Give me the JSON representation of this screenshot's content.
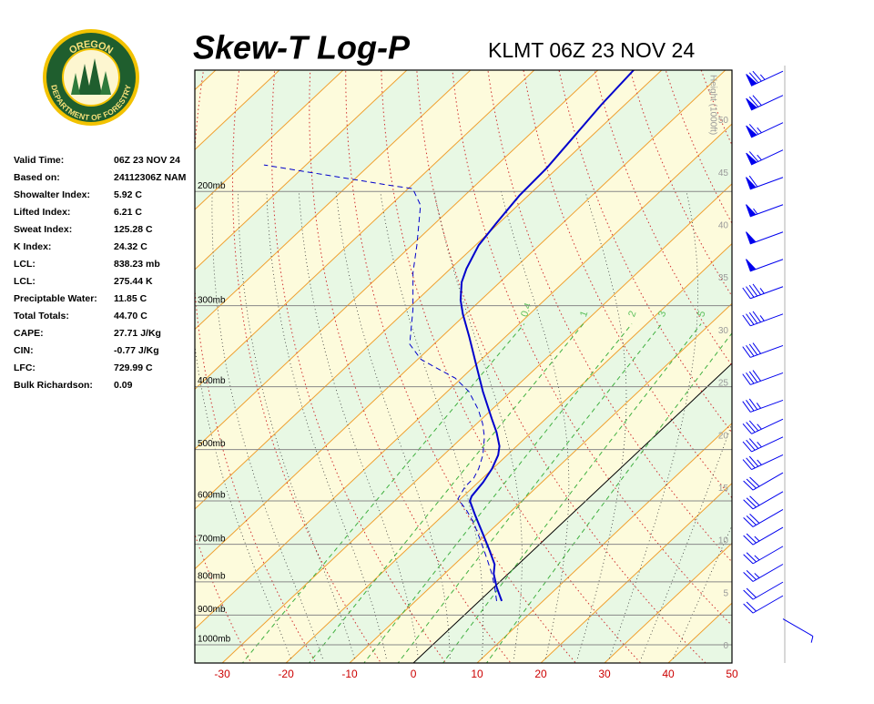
{
  "chart_data": {
    "type": "skewt",
    "title": "Skew-T Log-P",
    "subtitle": "KLMT 06Z 23 NOV 24",
    "logo": {
      "top": "OREGON",
      "bottom": "DEPARTMENT OF FORESTRY"
    },
    "info": [
      {
        "label": "Valid Time:",
        "value": "06Z 23 NOV 24"
      },
      {
        "label": "Based on:",
        "value": "24112306Z NAM"
      },
      {
        "label": "Showalter Index:",
        "value": "5.92 C"
      },
      {
        "label": "Lifted Index:",
        "value": "6.21 C"
      },
      {
        "label": "Sweat Index:",
        "value": "125.28 C"
      },
      {
        "label": "K Index:",
        "value": "24.32 C"
      },
      {
        "label": "LCL:",
        "value": "838.23 mb"
      },
      {
        "label": "LCL:",
        "value": "275.44 K"
      },
      {
        "label": "Preciptable Water:",
        "value": "11.85 C"
      },
      {
        "label": "Total Totals:",
        "value": "44.70 C"
      },
      {
        "label": "CAPE:",
        "value": "27.71 J/Kg"
      },
      {
        "label": "CIN:",
        "value": "-0.77 J/Kg"
      },
      {
        "label": "LFC:",
        "value": "729.99 C"
      },
      {
        "label": "Bulk Richardson:",
        "value": "0.09"
      }
    ],
    "xlim": [
      -34.3,
      50
    ],
    "xticks": [
      -30,
      -20,
      -10,
      0,
      10,
      20,
      30,
      40,
      50
    ],
    "ylim": [
      1067,
      130
    ],
    "log_y": true,
    "yticks": [
      {
        "value": 200,
        "label": "200mb"
      },
      {
        "value": 300,
        "label": "300mb"
      },
      {
        "value": 400,
        "label": "400mb"
      },
      {
        "value": 500,
        "label": "500mb"
      },
      {
        "value": 600,
        "label": "600mb"
      },
      {
        "value": 700,
        "label": "700mb"
      },
      {
        "value": 800,
        "label": "800mb"
      },
      {
        "value": 900,
        "label": "900mb"
      },
      {
        "value": 1000,
        "label": "1000mb"
      }
    ],
    "y2label": "Height (1000ft)",
    "y2lim": [
      -1.6,
      54.8
    ],
    "y2ticks": [
      0,
      5,
      10,
      15,
      20,
      25,
      30,
      35,
      40,
      45,
      50
    ],
    "mixing_ratios": [
      0.4,
      1,
      2,
      3,
      5,
      8
    ],
    "profiles": [
      {
        "color": "#0000cc",
        "dashed": false,
        "pressure": [
          856,
          815,
          777,
          752,
          717,
          672,
          630,
          600,
          590,
          562,
          535,
          510,
          494,
          470,
          448,
          407,
          369,
          335,
          309,
          294,
          276,
          263,
          242,
          224,
          203,
          184,
          164,
          147,
          130
        ],
        "temperature": [
          3.5,
          0.4,
          -2.3,
          -3.7,
          -6.7,
          -10.9,
          -15.1,
          -18.2,
          -18.7,
          -19.2,
          -20.1,
          -21.4,
          -22.7,
          -25.5,
          -28.5,
          -34.4,
          -40.1,
          -45.7,
          -50.5,
          -53.2,
          -56.0,
          -57.5,
          -59.5,
          -60.4,
          -61.4,
          -61.7,
          -62.7,
          -63.7,
          -64.4
        ]
      },
      {
        "color": "#0000cc",
        "dashed": true,
        "pressure": [
          856,
          815,
          777,
          740,
          694,
          650,
          619,
          596,
          571,
          553,
          535,
          510,
          478,
          456,
          434,
          407,
          388,
          375,
          363,
          344,
          304,
          267,
          242,
          220,
          210,
          198,
          196,
          182
        ],
        "temperature": [
          2.7,
          0.1,
          -2.6,
          -5.6,
          -9.6,
          -13.8,
          -17.3,
          -20.4,
          -21.3,
          -21.4,
          -22.2,
          -23.8,
          -26.6,
          -29.1,
          -32.1,
          -36.6,
          -41.0,
          -45.4,
          -49.5,
          -53.8,
          -59.1,
          -65.2,
          -69.2,
          -73.3,
          -75.3,
          -79.3,
          -82.9,
          -106.6
        ]
      }
    ],
    "winds": {
      "color": "#0000ee",
      "height": [
        54.7,
        52.4,
        49.8,
        47.2,
        44.6,
        42.0,
        39.4,
        36.8,
        34.2,
        31.6,
        28.6,
        26.0,
        23.4,
        21.6,
        19.9,
        18.2,
        16.5,
        14.7,
        13.0,
        11.3,
        9.5,
        7.8,
        6.1,
        4.8,
        2.6
      ],
      "direction": [
        245,
        245,
        245,
        245,
        250,
        250,
        250,
        250,
        250,
        250,
        250,
        250,
        250,
        245,
        245,
        245,
        240,
        240,
        240,
        240,
        240,
        240,
        240,
        240,
        120
      ],
      "speed": [
        75,
        70,
        65,
        65,
        60,
        55,
        50,
        50,
        45,
        45,
        40,
        40,
        35,
        35,
        35,
        35,
        30,
        30,
        30,
        25,
        25,
        25,
        20,
        20,
        5
      ]
    }
  }
}
